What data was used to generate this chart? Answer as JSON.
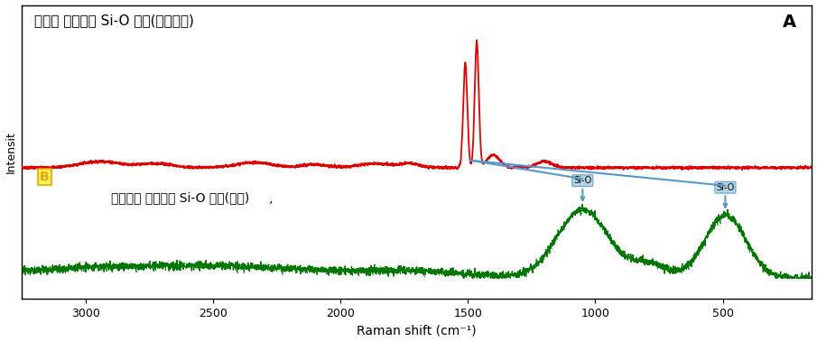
{
  "title_A": "결정형 실리카의 Si-O 피크(날카로움)",
  "label_B": "B",
  "label_A": "A",
  "text_B_annotation": "비결정형 실리카의 Si-O 피크(넓음)     ,",
  "xlabel": "Raman shift (cm⁻¹)",
  "ylabel": "Intensit",
  "xlim": [
    3250,
    150
  ],
  "bg_color": "#ffffff",
  "red_line_color": "#dd0000",
  "green_line_color": "#007700",
  "arrow_color": "#5599cc",
  "label_B_color": "#ddaa00",
  "red_peak1": 1465,
  "red_peak2": 1510,
  "green_peak1": 1050,
  "green_peak2": 490
}
